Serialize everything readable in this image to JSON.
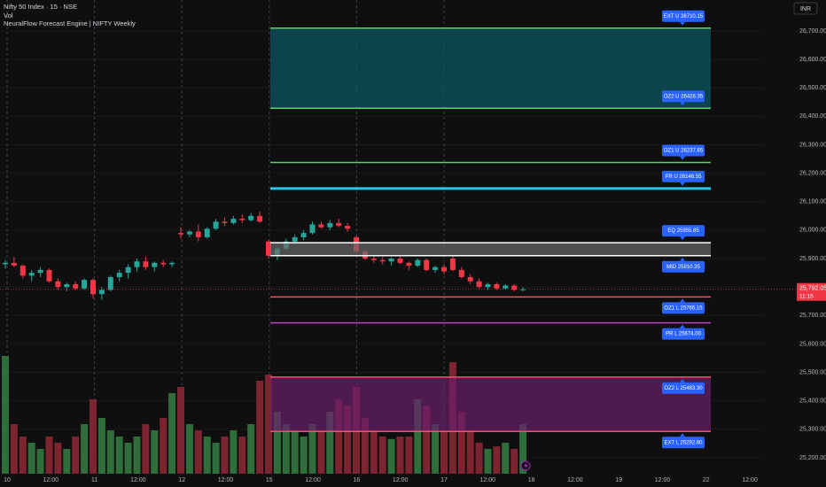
{
  "chart_data": {
    "type": "candlestick",
    "title": "Nifty 50 Index · 15 · NSE",
    "volume_label": "Vol",
    "indicator_label": "NeuralFlow Forecast Engine | NIFTY Weekly",
    "currency": "INR",
    "categories": [
      "10",
      "12:00",
      "11",
      "12:00",
      "12",
      "12:00",
      "15",
      "12:00",
      "16",
      "12:00",
      "17",
      "12:00",
      "18",
      "12:00",
      "19",
      "12:00",
      "22",
      "12:00"
    ],
    "open": [
      25880,
      25885,
      25875,
      25840,
      25850,
      25860,
      25820,
      25800,
      25810,
      25795,
      25825,
      25775,
      25790,
      25835,
      25850,
      25870,
      25890,
      25870,
      25885,
      25880,
      25990,
      25985,
      25995,
      25975,
      26005,
      26030,
      26025,
      26040,
      26035,
      26050,
      25960,
      25910,
      25935,
      25960,
      25975,
      25990,
      26020,
      26010,
      26025,
      26015,
      25975,
      25925,
      25900,
      25895,
      25890,
      25900,
      25885,
      25875,
      25895,
      25860,
      25870,
      25900,
      25860,
      25835,
      25820,
      25800,
      25810,
      25795,
      25805,
      25790
    ],
    "high": [
      25895,
      25905,
      25880,
      25860,
      25870,
      25865,
      25830,
      25815,
      25820,
      25830,
      25830,
      25800,
      25840,
      25860,
      25880,
      25900,
      25905,
      25890,
      25895,
      25890,
      26010,
      26000,
      26020,
      26010,
      26040,
      26045,
      26050,
      26055,
      26060,
      26065,
      25965,
      25940,
      25970,
      25985,
      26000,
      26030,
      26030,
      26035,
      26040,
      26025,
      25980,
      25930,
      25910,
      25905,
      25905,
      25910,
      25890,
      25900,
      25900,
      25875,
      25880,
      25910,
      25870,
      25845,
      25830,
      25815,
      25815,
      25810,
      25810,
      25800
    ],
    "low": [
      25865,
      25870,
      25830,
      25820,
      25835,
      25815,
      25790,
      25785,
      25790,
      25790,
      25760,
      25755,
      25785,
      25820,
      25830,
      25855,
      25860,
      25855,
      25870,
      25870,
      25970,
      25975,
      25960,
      25970,
      26000,
      26015,
      26020,
      26025,
      26030,
      26025,
      25900,
      25895,
      25930,
      25950,
      25965,
      25985,
      26005,
      26000,
      26010,
      25995,
      25920,
      25895,
      25885,
      25880,
      25875,
      25880,
      25860,
      25870,
      25855,
      25850,
      25845,
      25855,
      25830,
      25810,
      25795,
      25790,
      25790,
      25790,
      25785,
      25785
    ],
    "close": [
      25885,
      25875,
      25840,
      25850,
      25860,
      25820,
      25800,
      25810,
      25795,
      25825,
      25775,
      25790,
      25835,
      25850,
      25870,
      25890,
      25870,
      25885,
      25880,
      25885,
      25985,
      25995,
      25975,
      26005,
      26030,
      26025,
      26040,
      26035,
      26050,
      26030,
      25910,
      25935,
      25960,
      25975,
      25990,
      26020,
      26010,
      26025,
      26015,
      26005,
      25925,
      25900,
      25895,
      25890,
      25900,
      25885,
      25875,
      25895,
      25860,
      25870,
      25855,
      25860,
      25835,
      25820,
      25800,
      25810,
      25795,
      25805,
      25790,
      25792.05
    ],
    "volume": [
      95,
      40,
      30,
      25,
      20,
      30,
      25,
      20,
      30,
      40,
      60,
      45,
      35,
      30,
      25,
      30,
      40,
      35,
      45,
      65,
      70,
      40,
      35,
      30,
      25,
      30,
      35,
      30,
      40,
      75,
      80,
      50,
      40,
      35,
      30,
      40,
      35,
      50,
      60,
      55,
      70,
      45,
      35,
      30,
      28,
      30,
      30,
      60,
      55,
      40,
      35,
      90,
      50,
      35,
      25,
      20,
      22,
      25,
      20,
      40
    ],
    "volume_ylim": [
      0,
      100
    ],
    "up_color": "#26a69a",
    "down_color": "#f23645",
    "volume_up_color": "#2f6e3b",
    "volume_down_color": "#7c2430",
    "ylim": [
      25168.7,
      26808.9
    ],
    "yticks": [
      {
        "value": 25200,
        "label": "25,200.00"
      },
      {
        "value": 25300,
        "label": "25,300.00"
      },
      {
        "value": 25400,
        "label": "25,400.00"
      },
      {
        "value": 25500,
        "label": "25,500.00"
      },
      {
        "value": 25600,
        "label": "25,600.00"
      },
      {
        "value": 25700,
        "label": "25,700.00"
      },
      {
        "value": 25800,
        "label": "25,800.00"
      },
      {
        "value": 25900,
        "label": "25,900.00"
      },
      {
        "value": 26000,
        "label": "26,000.00"
      },
      {
        "value": 26100,
        "label": "26,100.00"
      },
      {
        "value": 26200,
        "label": "26,200.00"
      },
      {
        "value": 26300,
        "label": "26,300.00"
      },
      {
        "value": 26400,
        "label": "26,400.00"
      },
      {
        "value": 26500,
        "label": "26,500.00"
      },
      {
        "value": 26600,
        "label": "26,600.00"
      },
      {
        "value": 26700,
        "label": "26,700.00"
      }
    ],
    "grid": true,
    "levels": [
      {
        "label": "EXT U 26710.15",
        "value": 26710.15,
        "color": "#5cd35c",
        "fill": "#0b5a66"
      },
      {
        "label": "OZ2 U 26428.35",
        "value": 26428.35,
        "color": "#5cd35c"
      },
      {
        "label": "OZ1 U 26237.65",
        "value": 26237.65,
        "color": "#5cd35c"
      },
      {
        "label": "PR U 26146.55",
        "value": 26146.55,
        "color": "#29c5e6"
      },
      {
        "label": "EQ 25955.85",
        "value": 25955.85,
        "color": "#ffffff",
        "fill": "#6a6a6a"
      },
      {
        "label": "MID 25910.35",
        "value": 25910.35,
        "color": "#ffffff"
      },
      {
        "label": "OZ1 L 25765.15",
        "value": 25765.15,
        "color": "#f7525f"
      },
      {
        "label": "PR L 25674.00",
        "value": 25674.0,
        "color": "#c040c8"
      },
      {
        "label": "OZ2 L 25483.30",
        "value": 25483.3,
        "color": "#f7525f",
        "fill": "#6a1f6c"
      },
      {
        "label": "EXT L 25292.60",
        "value": 25292.6,
        "color": "#f7525f"
      }
    ],
    "last_price": {
      "value": 25792.05,
      "label": "25,792.05",
      "countdown": "11:15",
      "color": "#f23645"
    }
  }
}
